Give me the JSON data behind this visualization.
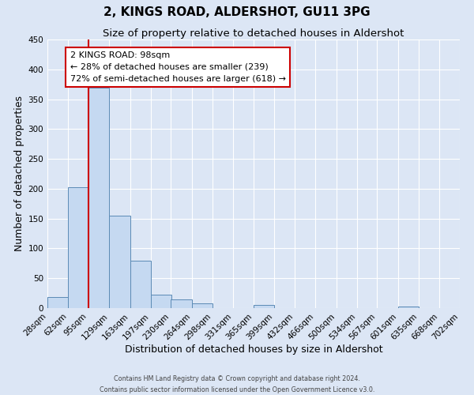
{
  "title": "2, KINGS ROAD, ALDERSHOT, GU11 3PG",
  "subtitle": "Size of property relative to detached houses in Aldershot",
  "xlabel": "Distribution of detached houses by size in Aldershot",
  "ylabel": "Number of detached properties",
  "footer_line1": "Contains HM Land Registry data © Crown copyright and database right 2024.",
  "footer_line2": "Contains public sector information licensed under the Open Government Licence v3.0.",
  "bin_edges": [
    28,
    62,
    95,
    129,
    163,
    197,
    230,
    264,
    298,
    331,
    365,
    399,
    432,
    466,
    500,
    534,
    567,
    601,
    635,
    668,
    702
  ],
  "bin_labels": [
    "28sqm",
    "62sqm",
    "95sqm",
    "129sqm",
    "163sqm",
    "197sqm",
    "230sqm",
    "264sqm",
    "298sqm",
    "331sqm",
    "365sqm",
    "399sqm",
    "432sqm",
    "466sqm",
    "500sqm",
    "534sqm",
    "567sqm",
    "601sqm",
    "635sqm",
    "668sqm",
    "702sqm"
  ],
  "bar_heights": [
    19,
    203,
    369,
    155,
    79,
    22,
    15,
    8,
    0,
    0,
    5,
    0,
    0,
    0,
    0,
    0,
    0,
    3,
    0,
    0,
    0
  ],
  "bar_color": "#c5d9f1",
  "bar_edge_color": "#5b8ab5",
  "ylim": [
    0,
    450
  ],
  "yticks": [
    0,
    50,
    100,
    150,
    200,
    250,
    300,
    350,
    400,
    450
  ],
  "property_line_x": 95,
  "property_line_color": "#cc0000",
  "annotation_title": "2 KINGS ROAD: 98sqm",
  "annotation_line1": "← 28% of detached houses are smaller (239)",
  "annotation_line2": "72% of semi-detached houses are larger (618) →",
  "annotation_box_color": "#ffffff",
  "annotation_box_edge": "#cc0000",
  "bg_color": "#dce6f5",
  "plot_bg_color": "#dce6f5",
  "grid_color": "#ffffff",
  "title_fontsize": 11,
  "subtitle_fontsize": 9.5,
  "axis_label_fontsize": 9,
  "tick_fontsize": 7.5
}
